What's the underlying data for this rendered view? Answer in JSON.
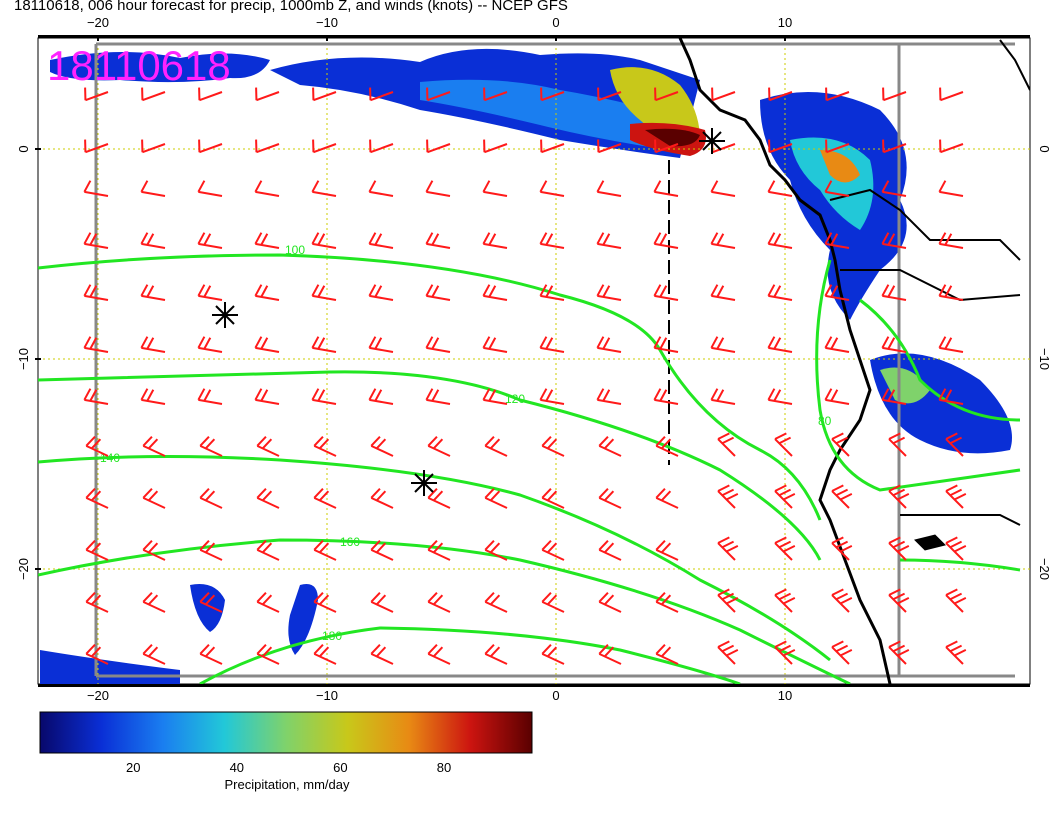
{
  "title": "18110618, 006 hour forecast for precip, 1000mb Z, and winds (knots) -- NCEP GFS",
  "timestamp_label": "18110618",
  "axes": {
    "lon_labels": [
      "−20",
      "−10",
      "0",
      "10"
    ],
    "lat_labels": [
      "0",
      "−10",
      "−20"
    ],
    "lon_values": [
      -20,
      -10,
      0,
      10
    ],
    "lat_values": [
      0,
      -10,
      -20
    ]
  },
  "colorbar": {
    "label": "Precipitation, mm/day",
    "ticks": [
      "20",
      "40",
      "60",
      "80"
    ],
    "tick_values": [
      20,
      40,
      60,
      80
    ],
    "range": [
      2,
      97
    ],
    "colors": [
      "#08086b",
      "#0a2fd6",
      "#1a7ef0",
      "#22c8d8",
      "#7fd26b",
      "#c8c81a",
      "#e88a14",
      "#cc1410",
      "#5a0000"
    ]
  },
  "contours": {
    "color": "#22e622",
    "labels": [
      "100",
      "120",
      "140",
      "160",
      "180",
      "80"
    ]
  },
  "colors": {
    "barbs": "#ff1a1a",
    "contour": "#22e622",
    "coast": "#000000",
    "grid": "#cccc00",
    "timestamp": "#ff22ff"
  }
}
